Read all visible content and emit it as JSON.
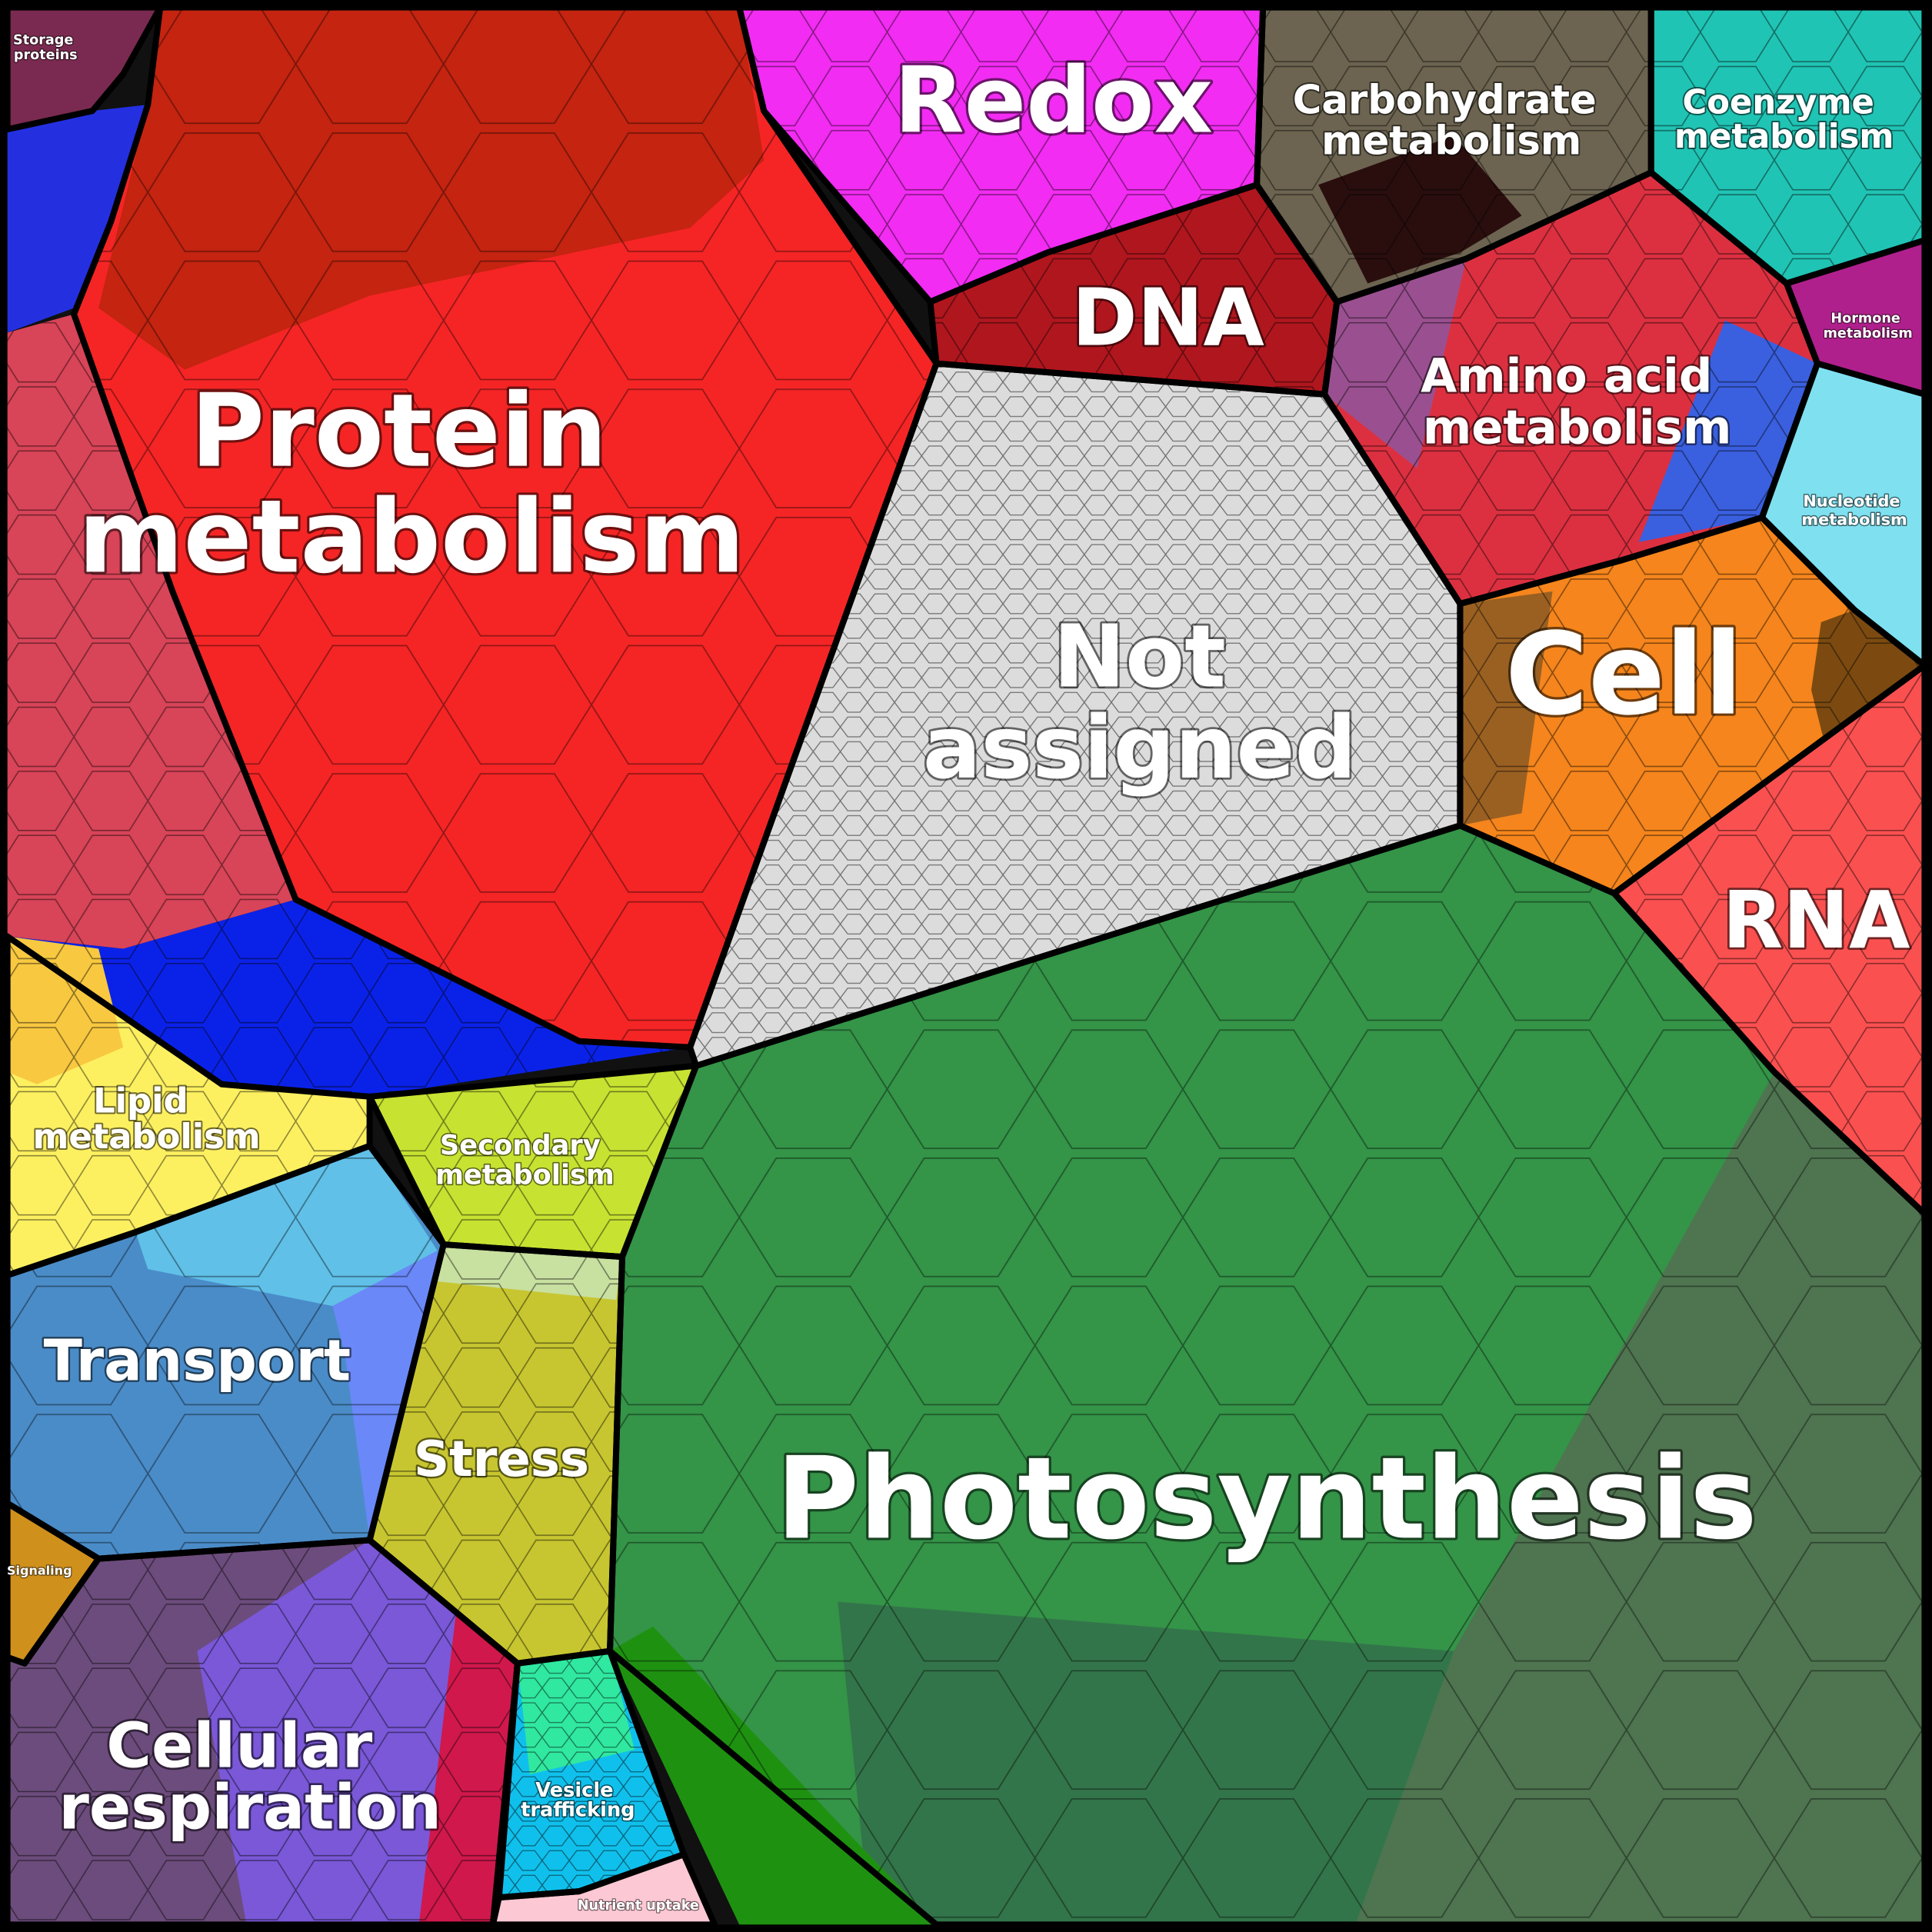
{
  "categories": [
    {
      "id": "protein",
      "label_lines": [
        "Protein",
        "metabolism"
      ],
      "color": "#f52525"
    },
    {
      "id": "redox",
      "label_lines": [
        "Redox"
      ],
      "color": "#f22cf2"
    },
    {
      "id": "carbohydrate",
      "label_lines": [
        "Carbohydrate",
        "metabolism"
      ],
      "color": "#6c6450"
    },
    {
      "id": "coenzyme",
      "label_lines": [
        "Coenzyme",
        "metabolism"
      ],
      "color": "#20c4b4"
    },
    {
      "id": "storage",
      "label_lines": [
        "Storage",
        "proteins"
      ],
      "color": "#7a2a50"
    },
    {
      "id": "dna",
      "label_lines": [
        "DNA"
      ],
      "color": "#b0161e"
    },
    {
      "id": "hormone",
      "label_lines": [
        "Hormone",
        "metabolism"
      ],
      "color": "#b0208c"
    },
    {
      "id": "amino",
      "label_lines": [
        "Amino acid",
        "metabolism"
      ],
      "color": "#dc3040"
    },
    {
      "id": "nucleotide",
      "label_lines": [
        "Nucleotide",
        "metabolism"
      ],
      "color": "#7fe0f0"
    },
    {
      "id": "not_assigned",
      "label_lines": [
        "Not",
        "assigned"
      ],
      "color": "#dcdcdc"
    },
    {
      "id": "cell",
      "label_lines": [
        "Cell"
      ],
      "color": "#f5851c"
    },
    {
      "id": "rna",
      "label_lines": [
        "RNA"
      ],
      "color": "#fb5050"
    },
    {
      "id": "lipid",
      "label_lines": [
        "Lipid",
        "metabolism"
      ],
      "color": "#fdf060"
    },
    {
      "id": "secondary",
      "label_lines": [
        "Secondary",
        "metabolism"
      ],
      "color": "#c8e232"
    },
    {
      "id": "transport",
      "label_lines": [
        "Transport"
      ],
      "color": "#4a8cc8"
    },
    {
      "id": "stress",
      "label_lines": [
        "Stress"
      ],
      "color": "#c8c630"
    },
    {
      "id": "photosynthesis",
      "label_lines": [
        "Photosynthesis"
      ],
      "color": "#349448"
    },
    {
      "id": "signaling",
      "label_lines": [
        "Signaling"
      ],
      "color": "#d0901c"
    },
    {
      "id": "respiration",
      "label_lines": [
        "Cellular",
        "respiration"
      ],
      "color": "#6c4c7c"
    },
    {
      "id": "vesicle",
      "label_lines": [
        "Vesicle",
        "trafficking"
      ],
      "color": "#10c0ec"
    },
    {
      "id": "nutrient",
      "label_lines": [
        "Nutrient uptake"
      ],
      "color": "#fcc8d4"
    }
  ]
}
